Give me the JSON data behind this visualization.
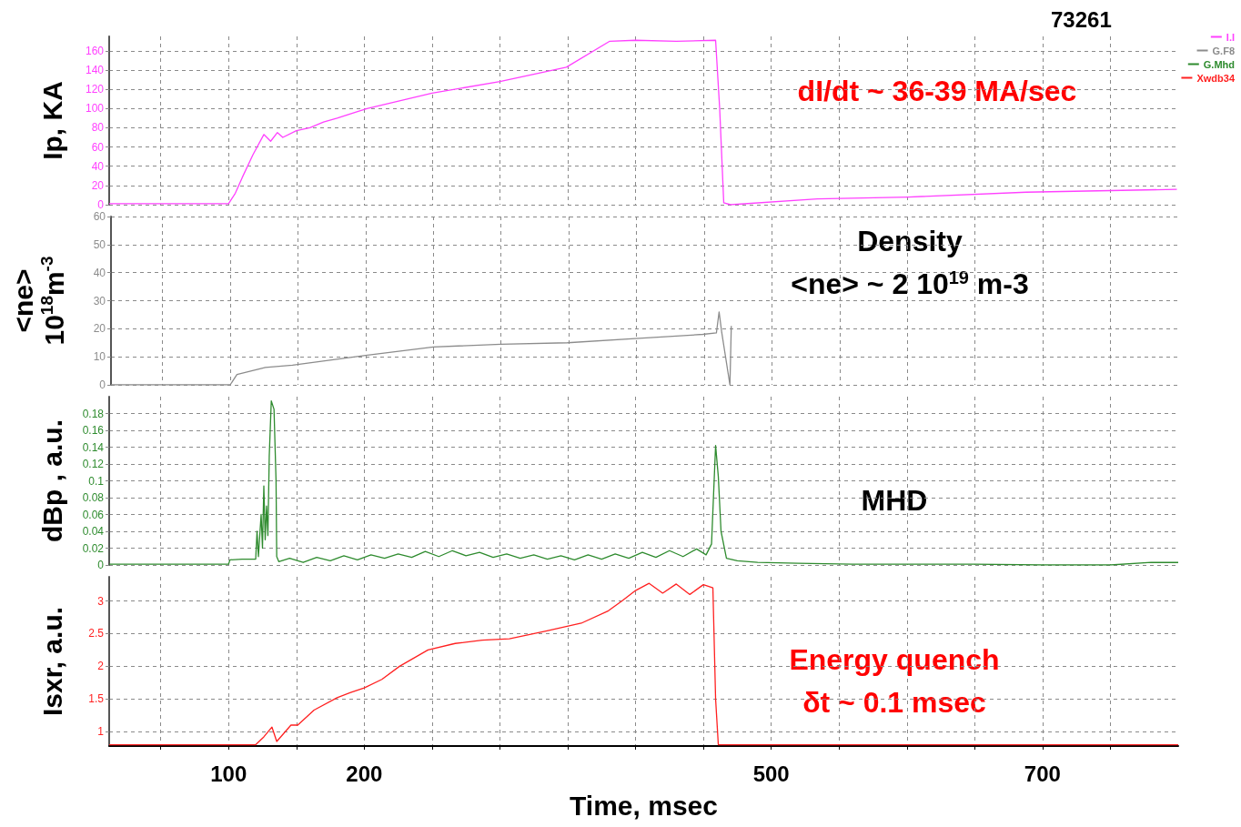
{
  "chart_data": [
    {
      "type": "line",
      "title": "73261",
      "x": [
        12,
        50,
        100,
        105,
        110,
        118,
        126,
        131,
        136,
        140,
        150,
        160,
        170,
        180,
        193,
        202,
        250,
        300,
        349,
        381,
        400,
        430,
        459,
        462,
        465,
        470,
        534,
        601,
        688,
        799
      ],
      "series": [
        {
          "name": "I.I",
          "color": "#ff40ff",
          "values": [
            1,
            1,
            1,
            12,
            28,
            52,
            73,
            66,
            75,
            70,
            77,
            80,
            86,
            90,
            96,
            100,
            116,
            128,
            143,
            170,
            171,
            170,
            171,
            100,
            2,
            0,
            6,
            8,
            13,
            16
          ]
        }
      ],
      "xlim": [
        12,
        800
      ],
      "xticks": [
        {
          "value": 50,
          "label": null
        },
        100,
        {
          "value": 150,
          "label": null
        },
        200,
        {
          "value": 250,
          "label": null
        },
        {
          "value": 300,
          "label": null
        },
        {
          "value": 350,
          "label": null
        },
        {
          "value": 400,
          "label": null
        },
        {
          "value": 450,
          "label": null
        },
        500,
        {
          "value": 550,
          "label": null
        },
        {
          "value": 600,
          "label": null
        },
        {
          "value": 650,
          "label": null
        },
        700,
        {
          "value": 750,
          "label": null
        }
      ],
      "ylim": [
        0,
        175
      ],
      "yticks": [
        0,
        20,
        40,
        60,
        80,
        100,
        120,
        140,
        160
      ],
      "ylabel": "Ip, KA",
      "annotations": [
        "dI/dt ~ 36-39 MA/sec"
      ],
      "grid": true,
      "legend": "top right",
      "tick_labels": "y"
    },
    {
      "type": "line",
      "x": [
        12,
        50,
        100,
        105,
        126,
        146,
        200,
        250,
        300,
        349,
        399,
        449,
        459,
        461,
        463,
        469,
        470
      ],
      "series": [
        {
          "name": "G.F8",
          "color": "#8c8c8c",
          "values": [
            0,
            0,
            0,
            3.7,
            6.2,
            7,
            10.5,
            13.5,
            14.5,
            15,
            16.5,
            18,
            18.5,
            26,
            18.5,
            0,
            21
          ]
        }
      ],
      "xlim": [
        12,
        800
      ],
      "xticks": [
        {
          "value": 50,
          "label": null
        },
        100,
        {
          "value": 150,
          "label": null
        },
        200,
        {
          "value": 250,
          "label": null
        },
        {
          "value": 300,
          "label": null
        },
        {
          "value": 350,
          "label": null
        },
        {
          "value": 400,
          "label": null
        },
        {
          "value": 450,
          "label": null
        },
        500,
        {
          "value": 550,
          "label": null
        },
        {
          "value": 600,
          "label": null
        },
        {
          "value": 650,
          "label": null
        },
        700,
        {
          "value": 750,
          "label": null
        }
      ],
      "ylim": [
        0,
        60
      ],
      "yticks": [
        0,
        10,
        20,
        30,
        40,
        50,
        60
      ],
      "ylabel": "<ne>\n10$^{18}$m$^{-3}$",
      "annotations": [
        "Density",
        "<ne> ~ 2 10$^{19}$ m-3"
      ],
      "grid": true,
      "legend": "top right",
      "tick_labels": "y"
    },
    {
      "type": "line",
      "x": [
        12,
        60,
        100,
        101,
        110,
        120,
        121,
        122,
        124,
        125,
        126,
        127,
        128,
        129,
        130,
        131.5,
        133.5,
        135,
        135.5,
        137,
        145,
        155,
        165,
        175,
        185,
        195,
        205,
        215,
        225,
        235,
        245,
        255,
        265,
        275,
        285,
        295,
        305,
        315,
        325,
        335,
        345,
        355,
        365,
        375,
        385,
        395,
        405,
        415,
        425,
        435,
        445,
        452,
        456,
        459,
        461,
        463,
        467,
        475,
        490,
        520,
        560,
        600,
        650,
        700,
        750,
        780,
        790,
        800
      ],
      "series": [
        {
          "name": "G.Mhd",
          "color": "#2e8b2e",
          "values": [
            0.001,
            0.001,
            0.001,
            0.006,
            0.007,
            0.007,
            0.04,
            0.01,
            0.06,
            0.02,
            0.094,
            0.03,
            0.07,
            0.035,
            0.13,
            0.195,
            0.185,
            0.1,
            0.01,
            0.004,
            0.008,
            0.003,
            0.009,
            0.005,
            0.011,
            0.006,
            0.012,
            0.008,
            0.013,
            0.009,
            0.016,
            0.01,
            0.017,
            0.011,
            0.015,
            0.009,
            0.013,
            0.008,
            0.012,
            0.007,
            0.011,
            0.006,
            0.012,
            0.007,
            0.013,
            0.008,
            0.015,
            0.009,
            0.017,
            0.01,
            0.019,
            0.012,
            0.025,
            0.142,
            0.105,
            0.04,
            0.008,
            0.005,
            0.003,
            0.002,
            0.001,
            0.001,
            0.001,
            0,
            0,
            0.003,
            0.003,
            0.003
          ]
        }
      ],
      "xlim": [
        12,
        800
      ],
      "xticks": [
        {
          "value": 50,
          "label": null
        },
        100,
        {
          "value": 150,
          "label": null
        },
        200,
        {
          "value": 250,
          "label": null
        },
        {
          "value": 300,
          "label": null
        },
        {
          "value": 350,
          "label": null
        },
        {
          "value": 400,
          "label": null
        },
        {
          "value": 450,
          "label": null
        },
        500,
        {
          "value": 550,
          "label": null
        },
        {
          "value": 600,
          "label": null
        },
        {
          "value": 650,
          "label": null
        },
        700,
        {
          "value": 750,
          "label": null
        }
      ],
      "ylim": [
        0,
        0.2
      ],
      "yticks": [
        0,
        0.02,
        0.04,
        0.06,
        0.08,
        0.1,
        0.12,
        0.14,
        0.16,
        0.18
      ],
      "ylabel": "dBp , a.u.",
      "annotations": [
        "MHD"
      ],
      "grid": true,
      "legend": "top right",
      "tick_labels": "y"
    },
    {
      "type": "line",
      "x": [
        12,
        60,
        120,
        126,
        132,
        135.5,
        146,
        151,
        163,
        180,
        190,
        200,
        213,
        226,
        247,
        267,
        287,
        307,
        334,
        360,
        380,
        390,
        400,
        410,
        420,
        430,
        440,
        450,
        457,
        459,
        461,
        500,
        600,
        700,
        800
      ],
      "series": [
        {
          "name": "Xwdb34",
          "color": "#ff2020",
          "values": [
            0.8,
            0.8,
            0.8,
            0.92,
            1.07,
            0.85,
            1.1,
            1.1,
            1.33,
            1.52,
            1.6,
            1.67,
            1.8,
            2.0,
            2.25,
            2.35,
            2.4,
            2.42,
            2.54,
            2.66,
            2.85,
            3.0,
            3.16,
            3.27,
            3.12,
            3.26,
            3.1,
            3.25,
            3.2,
            1.5,
            0.8,
            0.8,
            0.8,
            0.8,
            0.8
          ]
        }
      ],
      "xlim": [
        12,
        800
      ],
      "xticks": [
        {
          "value": 50,
          "label": null
        },
        100,
        {
          "value": 150,
          "label": null
        },
        200,
        {
          "value": 250,
          "label": null
        },
        {
          "value": 300,
          "label": null
        },
        {
          "value": 350,
          "label": null
        },
        {
          "value": 400,
          "label": null
        },
        {
          "value": 450,
          "label": null
        },
        500,
        {
          "value": 550,
          "label": null
        },
        {
          "value": 600,
          "label": null
        },
        {
          "value": 650,
          "label": null
        },
        700,
        {
          "value": 750,
          "label": null
        }
      ],
      "ylim": [
        0.78,
        3.37
      ],
      "yticks": [
        1,
        1.5,
        2,
        2.5,
        3
      ],
      "ylabel": "Isxr, a.u.",
      "xlabel": "Time, msec",
      "annotations": [
        "Energy quench",
        "δt ~ 0.1 msec"
      ],
      "grid": true,
      "legend": "top right"
    }
  ]
}
